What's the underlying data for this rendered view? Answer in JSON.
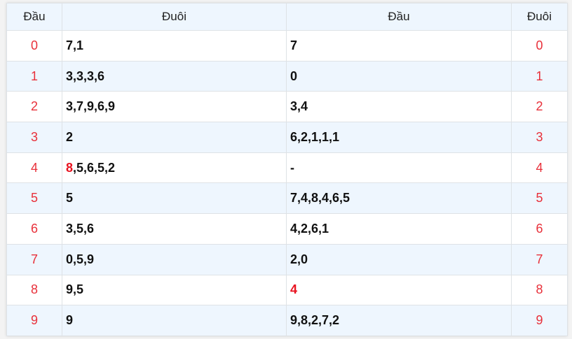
{
  "header": [
    "Đầu",
    "Đuôi",
    "Đầu",
    "Đuôi"
  ],
  "colors": {
    "number": "#e8303a",
    "highlight": "#e8121f",
    "alt_row": "#eef6fe"
  },
  "rows": [
    {
      "left_num": "0",
      "duoi": [
        {
          "t": "7,1"
        }
      ],
      "dau": [
        {
          "t": "7"
        }
      ],
      "right_num": "0"
    },
    {
      "left_num": "1",
      "duoi": [
        {
          "t": "3,3,3,6"
        }
      ],
      "dau": [
        {
          "t": "0"
        }
      ],
      "right_num": "1"
    },
    {
      "left_num": "2",
      "duoi": [
        {
          "t": "3,7,9,6,9"
        }
      ],
      "dau": [
        {
          "t": "3,4"
        }
      ],
      "right_num": "2"
    },
    {
      "left_num": "3",
      "duoi": [
        {
          "t": "2"
        }
      ],
      "dau": [
        {
          "t": "6,2,1,1,1"
        }
      ],
      "right_num": "3"
    },
    {
      "left_num": "4",
      "duoi": [
        {
          "t": "8",
          "hl": true
        },
        {
          "t": ",5,6,5,2"
        }
      ],
      "dau": [
        {
          "t": "-"
        }
      ],
      "right_num": "4"
    },
    {
      "left_num": "5",
      "duoi": [
        {
          "t": "5"
        }
      ],
      "dau": [
        {
          "t": "7,4,8,4,6,5"
        }
      ],
      "right_num": "5"
    },
    {
      "left_num": "6",
      "duoi": [
        {
          "t": "3,5,6"
        }
      ],
      "dau": [
        {
          "t": "4,2,6,1"
        }
      ],
      "right_num": "6"
    },
    {
      "left_num": "7",
      "duoi": [
        {
          "t": "0,5,9"
        }
      ],
      "dau": [
        {
          "t": "2,0"
        }
      ],
      "right_num": "7"
    },
    {
      "left_num": "8",
      "duoi": [
        {
          "t": "9,5"
        }
      ],
      "dau": [
        {
          "t": "4",
          "hl": true
        }
      ],
      "right_num": "8"
    },
    {
      "left_num": "9",
      "duoi": [
        {
          "t": "9"
        }
      ],
      "dau": [
        {
          "t": "9,8,2,7,2"
        }
      ],
      "right_num": "9"
    }
  ]
}
